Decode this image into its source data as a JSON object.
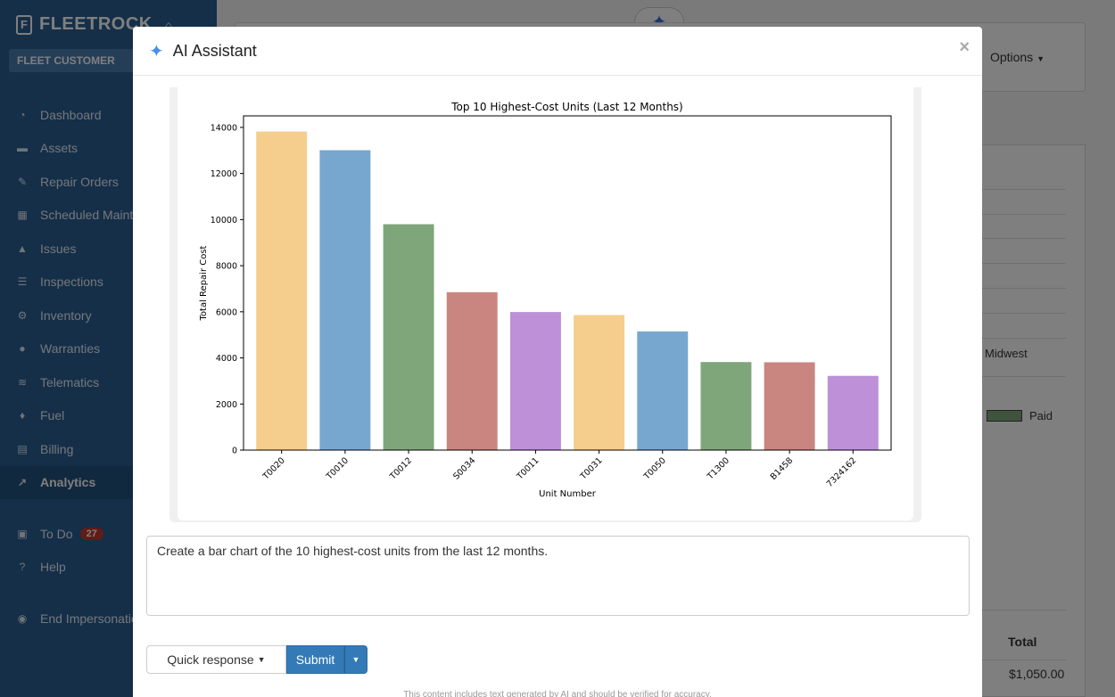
{
  "sidebar": {
    "brand": "FLEETROCK",
    "customer": "FLEET CUSTOMER",
    "items": [
      {
        "label": "Dashboard",
        "icon": "gauge-icon",
        "glyph": "◔"
      },
      {
        "label": "Assets",
        "icon": "truck-icon",
        "glyph": "▬"
      },
      {
        "label": "Repair Orders",
        "icon": "wrench-icon",
        "glyph": "✎"
      },
      {
        "label": "Scheduled Maintenance",
        "icon": "calendar-icon",
        "glyph": "▦"
      },
      {
        "label": "Issues",
        "icon": "warning-icon",
        "glyph": "▲"
      },
      {
        "label": "Inspections",
        "icon": "list-icon",
        "glyph": "☰"
      },
      {
        "label": "Inventory",
        "icon": "gears-icon",
        "glyph": "⚙"
      },
      {
        "label": "Warranties",
        "icon": "badge-icon",
        "glyph": "●"
      },
      {
        "label": "Telematics",
        "icon": "wifi-icon",
        "glyph": "≋"
      },
      {
        "label": "Fuel",
        "icon": "fuel-icon",
        "glyph": "♦"
      },
      {
        "label": "Billing",
        "icon": "file-icon",
        "glyph": "▤"
      },
      {
        "label": "Analytics",
        "icon": "chart-line-icon",
        "glyph": "↗"
      }
    ],
    "todo": {
      "label": "To Do",
      "count": "27"
    },
    "help": "Help",
    "end_impersonation": "End Impersonation"
  },
  "main": {
    "options_label": "Options",
    "midwest": "Midwest",
    "paid": "Paid",
    "total_label": "Total",
    "total_value": "$1,050.00"
  },
  "modal": {
    "title": "AI Assistant",
    "prompt_text": "Create a bar chart of the 10 highest-cost units from the last 12 months.",
    "quick_response_label": "Quick response",
    "submit_label": "Submit",
    "disclaimer": "This content includes text generated by AI and should be verified for accuracy."
  },
  "chart_data": {
    "type": "bar",
    "title": "Top 10 Highest-Cost Units (Last 12 Months)",
    "xlabel": "Unit Number",
    "ylabel": "Total Repair Cost",
    "categories": [
      "T0020",
      "T0010",
      "T0012",
      "S0034",
      "T0011",
      "T0031",
      "T0050",
      "T1300",
      "B1458",
      "7324162"
    ],
    "values": [
      13820,
      13010,
      9800,
      6850,
      5990,
      5860,
      5150,
      3820,
      3810,
      3220
    ],
    "ylim": [
      0,
      14500
    ],
    "yticks": [
      0,
      2000,
      4000,
      6000,
      8000,
      10000,
      12000,
      14000
    ],
    "colors": [
      "#f5cd8c",
      "#77a7cf",
      "#7fa67a",
      "#c98580",
      "#bd90d8",
      "#f5cd8c",
      "#77a7cf",
      "#7fa67a",
      "#c98580",
      "#bd90d8"
    ],
    "grid": false,
    "legend": "none"
  }
}
